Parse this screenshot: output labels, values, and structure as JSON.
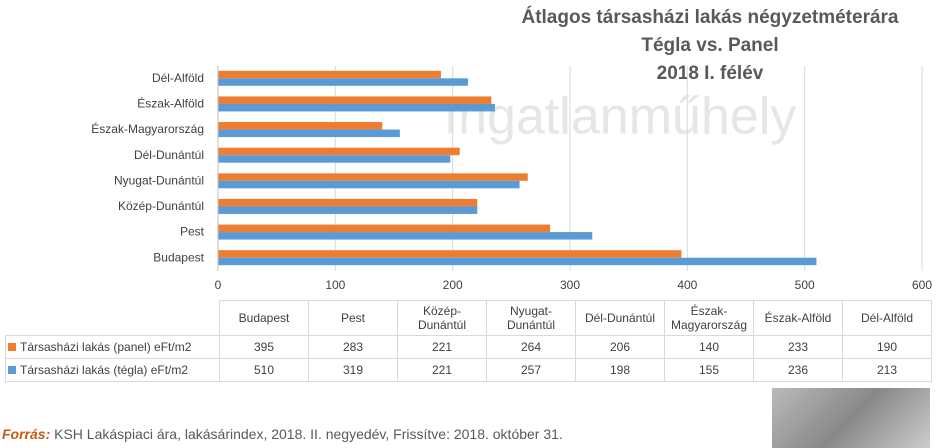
{
  "chart_data": {
    "type": "hbar",
    "title_lines": [
      "Átlagos társasházi lakás négyzetméterára",
      "Tégla vs. Panel",
      "2018 I. félév"
    ],
    "watermark": "Ingatlanműhely",
    "categories": [
      "Budapest",
      "Pest",
      "Közép-Dunántúl",
      "Nyugat-Dunántúl",
      "Dél-Dunántúl",
      "Észak-Magyarország",
      "Észak-Alföld",
      "Dél-Alföld"
    ],
    "series": [
      {
        "name": "Társasházi lakás (panel) eFt/m2",
        "color": "#ed7d31",
        "values": [
          395,
          283,
          221,
          264,
          206,
          140,
          233,
          190
        ]
      },
      {
        "name": "Társasházi lakás (tégla) eFt/m2",
        "color": "#5b9bd5",
        "values": [
          510,
          319,
          221,
          257,
          198,
          155,
          236,
          213
        ]
      }
    ],
    "xlim": [
      0,
      600
    ],
    "xticks": [
      0,
      100,
      200,
      300,
      400,
      500,
      600
    ],
    "grid": true,
    "source_label": "Forrás:",
    "source_text": "KSH Lakáspiaci ára, lakásárindex, 2018. II. negyedév, Frissítve: 2018. október 31."
  }
}
